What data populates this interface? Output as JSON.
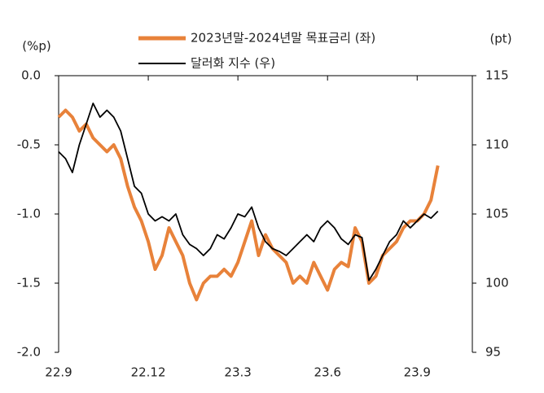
{
  "chart_data": {
    "type": "line",
    "legend_items": [
      "2023년말-2024년말 목표금리 (좌)",
      "달러화 지수 (우)"
    ],
    "ylabel": "(%p)",
    "y2label": "(pt)",
    "categories": [
      "22.9",
      null,
      null,
      null,
      null,
      null,
      null,
      null,
      null,
      null,
      null,
      null,
      null,
      "22.12",
      null,
      null,
      null,
      null,
      null,
      null,
      null,
      null,
      null,
      null,
      null,
      null,
      "23.3",
      null,
      null,
      null,
      null,
      null,
      null,
      null,
      null,
      null,
      null,
      null,
      null,
      "23.6",
      null,
      null,
      null,
      null,
      null,
      null,
      null,
      null,
      null,
      null,
      null,
      null,
      "23.9",
      null,
      null,
      null,
      null,
      null,
      null,
      null,
      null
    ],
    "series": [
      {
        "name": "2023년말-2024년말 목표금리 (좌)",
        "color": "#e8823a",
        "axis": "y",
        "values": [
          -0.3,
          -0.25,
          -0.3,
          -0.4,
          -0.35,
          -0.45,
          -0.5,
          -0.55,
          -0.5,
          -0.6,
          -0.8,
          -0.95,
          -1.05,
          -1.2,
          -1.4,
          -1.3,
          -1.1,
          -1.2,
          -1.3,
          -1.5,
          -1.62,
          -1.5,
          -1.45,
          -1.45,
          -1.4,
          -1.45,
          -1.35,
          -1.2,
          -1.05,
          -1.3,
          -1.15,
          -1.25,
          -1.3,
          -1.35,
          -1.5,
          -1.45,
          -1.5,
          -1.35,
          -1.45,
          -1.55,
          -1.4,
          -1.35,
          -1.38,
          -1.1,
          -1.2,
          -1.5,
          -1.45,
          -1.3,
          -1.25,
          -1.2,
          -1.1,
          -1.05,
          -1.05,
          -1.0,
          -0.9,
          -0.65,
          null,
          null,
          null,
          null,
          null
        ]
      },
      {
        "name": "달러화 지수 (우)",
        "color": "#000000",
        "axis": "y2",
        "values": [
          109.5,
          109,
          108,
          110,
          111.5,
          113,
          112,
          112.5,
          112,
          111,
          109,
          107,
          106.5,
          105,
          104.5,
          104.8,
          104.5,
          105,
          103.5,
          102.8,
          102.5,
          102,
          102.5,
          103.5,
          103.2,
          104,
          105,
          104.8,
          105.5,
          104,
          103,
          102.5,
          102.3,
          102,
          102.5,
          103,
          103.5,
          103,
          104,
          104.5,
          104,
          103.2,
          102.8,
          103.5,
          103.3,
          100.2,
          101,
          102,
          103,
          103.5,
          104.5,
          104,
          104.5,
          105,
          104.7,
          105.2,
          null,
          null,
          null,
          null,
          null
        ]
      }
    ],
    "ylim": [
      -2.0,
      0.0
    ],
    "yticks": [
      {
        "value": 0,
        "label": "0.0"
      },
      -0.5,
      {
        "value": -1,
        "label": "-1.0"
      },
      -1.5,
      {
        "value": -2,
        "label": "-2.0"
      }
    ],
    "y2lim": [
      95,
      115
    ],
    "y2ticks": [
      115,
      110,
      105,
      100,
      95
    ]
  }
}
